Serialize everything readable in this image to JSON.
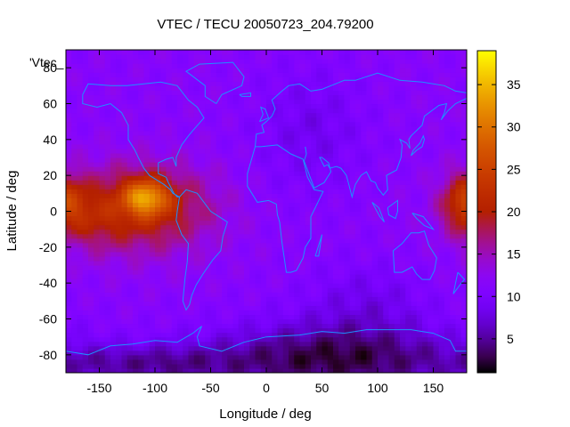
{
  "chart_data": {
    "type": "heatmap",
    "title": "VTEC / TECU 20050723_204.79200",
    "xlabel": "Longitude / deg",
    "ylabel": "Latitude / deg",
    "series_key": "'Vtec_",
    "xlim": [
      -180,
      180
    ],
    "ylim": [
      -90,
      90
    ],
    "x_ticks": [
      -150,
      -100,
      -50,
      0,
      50,
      100,
      150
    ],
    "y_ticks": [
      -80,
      -60,
      -40,
      -20,
      0,
      20,
      40,
      60,
      80
    ],
    "colorbar": {
      "range": [
        1,
        39
      ],
      "ticks": [
        5,
        10,
        15,
        20,
        25,
        30,
        35
      ],
      "palette": "black-purple-red-orange-yellow"
    },
    "grid": false,
    "overlay": "coastlines",
    "coastline_color": "#1e90ff",
    "resolution": {
      "lon_step": 5,
      "lat_step": 2.5
    },
    "features": [
      {
        "name": "equatorial-anomaly-peak",
        "lon": -108,
        "lat": 7,
        "vtec": 38
      },
      {
        "name": "equatorial-band-americas",
        "lon": -112,
        "lat": 2,
        "vtec": 22
      },
      {
        "name": "equatorial-band-dateline",
        "lon": 178,
        "lat": 5,
        "vtec": 20
      },
      {
        "name": "night-minimum",
        "lon": 60,
        "lat": -82,
        "vtec": 2
      }
    ]
  }
}
